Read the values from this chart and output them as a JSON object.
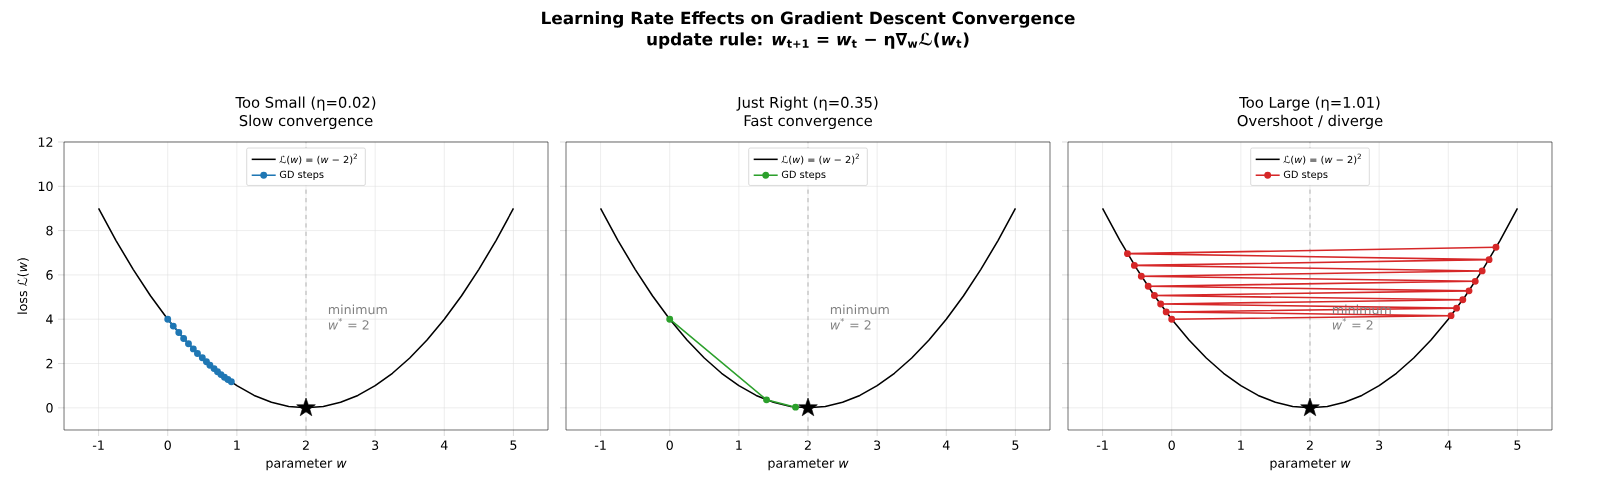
{
  "chart_data": [
    {
      "type": "line",
      "title": "Too Small (η=0.02)",
      "subtitle": "Slow convergence",
      "xlabel": "parameter *w*",
      "ylabel": "loss ℒ(*w*)",
      "annotations": [
        "Learning Rate Effects on Gradient Descent Convergence",
        "update rule: *w*$_{t+1}$ = *w*$_{t}$ − η∇$_{w}$ℒ(*w*$_{t}$)",
        "minimum",
        "*w*$^{*}$ = 2"
      ],
      "xlim": [
        -1.5,
        5.5
      ],
      "ylim": [
        -1,
        12
      ],
      "xticks": [
        -1,
        0,
        1,
        2,
        3,
        4,
        5
      ],
      "yticks": [
        0,
        2,
        4,
        6,
        8,
        10,
        12
      ],
      "grid": true,
      "legend": "top",
      "ref_lines": [
        {
          "axis": "x",
          "value": 2,
          "color": "#808080",
          "line_style": "dashed"
        }
      ],
      "series": [
        {
          "name": "ℒ(*w*) = (*w* − 2)$^{2}$",
          "type": "line",
          "color": "#000000",
          "marker": "none",
          "x": [
            -1,
            -0.75,
            -0.5,
            -0.25,
            0,
            0.25,
            0.5,
            0.75,
            1,
            1.25,
            1.5,
            1.75,
            2,
            2.25,
            2.5,
            2.75,
            3,
            3.25,
            3.5,
            3.75,
            4,
            4.25,
            4.5,
            4.75,
            5
          ],
          "values": [
            9,
            7.56,
            6.25,
            5.06,
            4,
            3.06,
            2.25,
            1.56,
            1,
            0.56,
            0.25,
            0.06,
            0,
            0.06,
            0.25,
            0.56,
            1,
            1.56,
            2.25,
            3.06,
            4,
            5.06,
            6.25,
            7.56,
            9
          ]
        },
        {
          "name": "GD steps",
          "type": "line",
          "color": "#1f77b4",
          "marker": "circle",
          "x": [
            0,
            0.08,
            0.16,
            0.23,
            0.3,
            0.37,
            0.43,
            0.5,
            0.56,
            0.61,
            0.67,
            0.72,
            0.77,
            0.82,
            0.87,
            0.92
          ],
          "values": [
            4,
            3.69,
            3.4,
            3.13,
            2.89,
            2.66,
            2.45,
            2.26,
            2.08,
            1.92,
            1.77,
            1.63,
            1.5,
            1.38,
            1.28,
            1.18
          ]
        },
        {
          "type": "scatter",
          "color": "#000000",
          "marker": "star",
          "x": [
            2
          ],
          "values": [
            0
          ]
        }
      ]
    },
    {
      "type": "line",
      "title": "Just Right (η=0.35)",
      "subtitle": "Fast convergence",
      "xlabel": "parameter *w*",
      "annotations": [
        "minimum",
        "*w*$^{*}$ = 2"
      ],
      "xlim": [
        -1.5,
        5.5
      ],
      "ylim": [
        -1,
        12
      ],
      "xticks": [
        -1,
        0,
        1,
        2,
        3,
        4,
        5
      ],
      "yticks": [
        0,
        2,
        4,
        6,
        8,
        10,
        12
      ],
      "grid": true,
      "legend": "top",
      "tick_labels": "x",
      "ref_lines": [
        {
          "axis": "x",
          "value": 2,
          "color": "#808080",
          "line_style": "dashed"
        }
      ],
      "series": [
        {
          "name": "ℒ(*w*) = (*w* − 2)$^{2}$",
          "type": "line",
          "color": "#000000",
          "marker": "none",
          "x": [
            -1,
            -0.75,
            -0.5,
            -0.25,
            0,
            0.25,
            0.5,
            0.75,
            1,
            1.25,
            1.5,
            1.75,
            2,
            2.25,
            2.5,
            2.75,
            3,
            3.25,
            3.5,
            3.75,
            4,
            4.25,
            4.5,
            4.75,
            5
          ],
          "values": [
            9,
            7.56,
            6.25,
            5.06,
            4,
            3.06,
            2.25,
            1.56,
            1,
            0.56,
            0.25,
            0.06,
            0,
            0.06,
            0.25,
            0.56,
            1,
            1.56,
            2.25,
            3.06,
            4,
            5.06,
            6.25,
            7.56,
            9
          ]
        },
        {
          "name": "GD steps",
          "type": "line",
          "color": "#2ca02c",
          "marker": "circle",
          "x": [
            0,
            1.4,
            1.82
          ],
          "values": [
            4,
            0.36,
            0.03
          ]
        },
        {
          "type": "scatter",
          "color": "#000000",
          "marker": "star",
          "x": [
            2
          ],
          "values": [
            0
          ]
        }
      ]
    },
    {
      "type": "line",
      "title": "Too Large (η=1.01)",
      "subtitle": "Overshoot / diverge",
      "xlabel": "parameter *w*",
      "annotations": [
        "minimum",
        "*w*$^{*}$ = 2"
      ],
      "xlim": [
        -1.5,
        5.5
      ],
      "ylim": [
        -1,
        12
      ],
      "xticks": [
        -1,
        0,
        1,
        2,
        3,
        4,
        5
      ],
      "yticks": [
        0,
        2,
        4,
        6,
        8,
        10,
        12
      ],
      "grid": true,
      "legend": "top",
      "tick_labels": "x",
      "ref_lines": [
        {
          "axis": "x",
          "value": 2,
          "color": "#808080",
          "line_style": "dashed"
        }
      ],
      "series": [
        {
          "name": "ℒ(*w*) = (*w* − 2)$^{2}$",
          "type": "line",
          "color": "#000000",
          "marker": "none",
          "x": [
            -1,
            -0.75,
            -0.5,
            -0.25,
            0,
            0.25,
            0.5,
            0.75,
            1,
            1.25,
            1.5,
            1.75,
            2,
            2.25,
            2.5,
            2.75,
            3,
            3.25,
            3.5,
            3.75,
            4,
            4.25,
            4.5,
            4.75,
            5
          ],
          "values": [
            9,
            7.56,
            6.25,
            5.06,
            4,
            3.06,
            2.25,
            1.56,
            1,
            0.56,
            0.25,
            0.06,
            0,
            0.06,
            0.25,
            0.56,
            1,
            1.56,
            2.25,
            3.06,
            4,
            5.06,
            6.25,
            7.56,
            9
          ]
        },
        {
          "name": "GD steps",
          "type": "line",
          "color": "#d62728",
          "marker": "circle",
          "x": [
            0,
            4.04,
            -0.08,
            4.12,
            -0.16,
            4.21,
            -0.25,
            4.3,
            -0.34,
            4.39,
            -0.44,
            4.49,
            -0.54,
            4.59,
            -0.64,
            4.69
          ],
          "values": [
            4,
            4.16,
            4.33,
            4.5,
            4.69,
            4.88,
            5.07,
            5.28,
            5.49,
            5.71,
            5.94,
            6.18,
            6.43,
            6.69,
            6.96,
            7.25
          ]
        },
        {
          "type": "scatter",
          "color": "#000000",
          "marker": "star",
          "x": [
            2
          ],
          "values": [
            0
          ]
        }
      ]
    }
  ]
}
